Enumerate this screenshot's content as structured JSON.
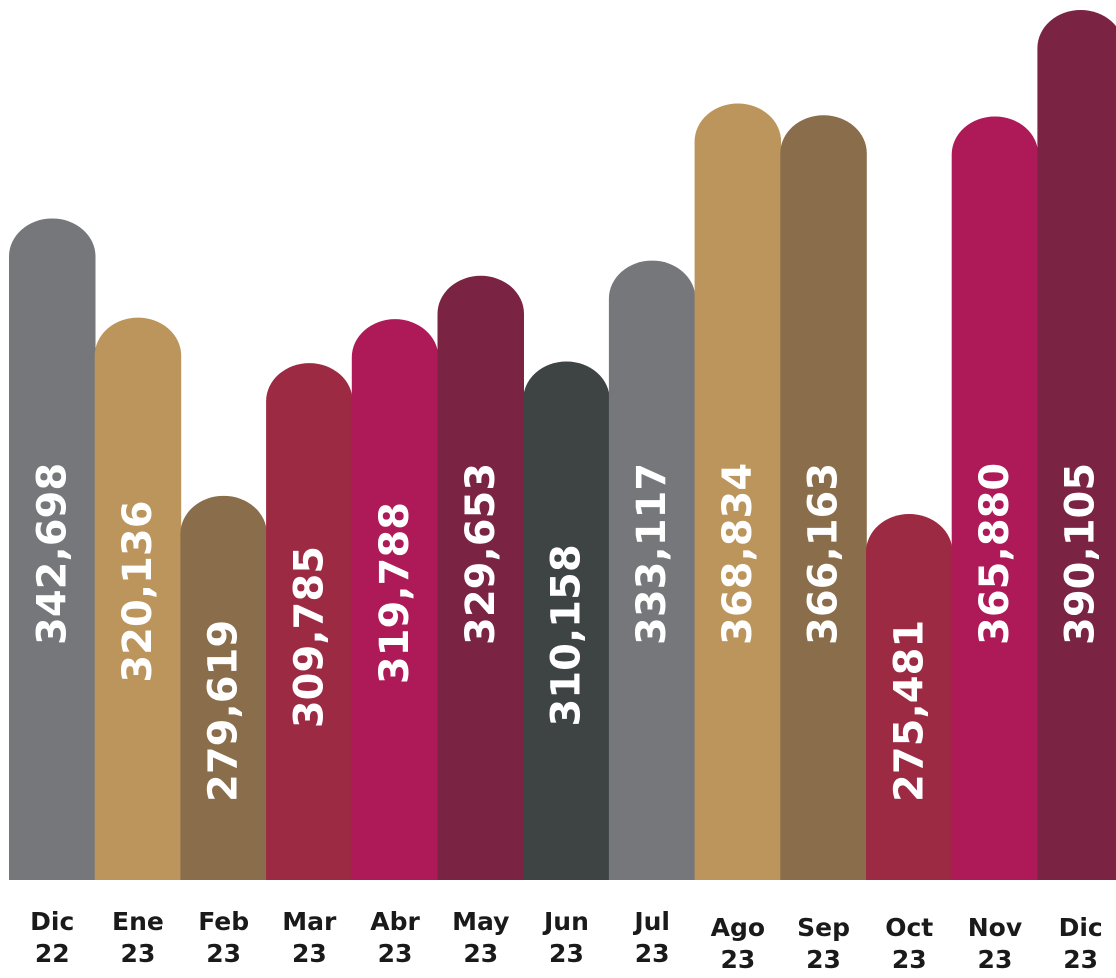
{
  "chart_data": {
    "type": "bar",
    "title": "",
    "xlabel": "",
    "ylabel": "",
    "grid": false,
    "legend": "none",
    "categories": [
      [
        "Dic",
        "22"
      ],
      [
        "Ene",
        "23"
      ],
      [
        "Feb",
        "23"
      ],
      [
        "Mar",
        "23"
      ],
      [
        "Abr",
        "23"
      ],
      [
        "May",
        "23"
      ],
      [
        "Jun",
        "23"
      ],
      [
        "Jul",
        "23"
      ],
      [
        "Ago",
        "23"
      ],
      [
        "Sep",
        "23"
      ],
      [
        "Oct",
        "23"
      ],
      [
        "Nov",
        "23"
      ],
      [
        "Dic",
        "23"
      ]
    ],
    "values": [
      342698,
      320136,
      279619,
      309785,
      319788,
      329653,
      310158,
      333117,
      368834,
      366163,
      275481,
      365880,
      390105
    ],
    "value_labels": [
      "342,698",
      "320,136",
      "279,619",
      "309,785",
      "319,788",
      "329,653",
      "310,158",
      "333,117",
      "368,834",
      "366,163",
      "275,481",
      "365,880",
      "390,105"
    ],
    "colors": [
      "#76777b",
      "#bb955b",
      "#8a6d4b",
      "#9c2a43",
      "#ae1957",
      "#7a2342",
      "#3d4443",
      "#76777b",
      "#bb955b",
      "#8a6d4b",
      "#9c2a43",
      "#ae1957",
      "#7a2342"
    ]
  }
}
